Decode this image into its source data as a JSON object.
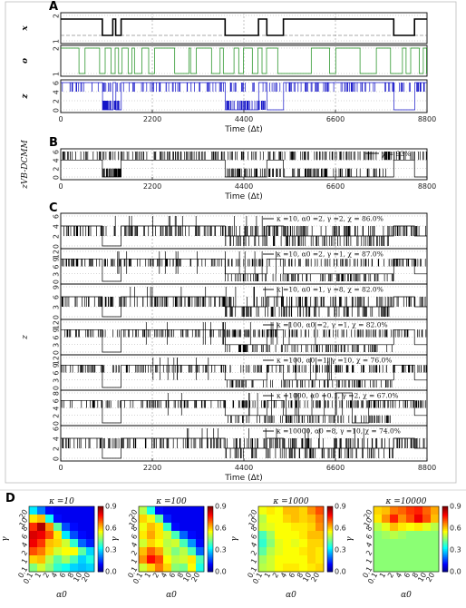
{
  "chart_data": [
    {
      "panel": "A",
      "type": "line",
      "subplots": [
        {
          "ylabel": "x",
          "ytick_labels": [
            "2",
            "1"
          ],
          "color": "#000000"
        },
        {
          "ylabel": "o",
          "ytick_labels": [
            "2",
            "1"
          ],
          "color": "#138a13"
        },
        {
          "ylabel": "z",
          "ytick_labels": [
            "6",
            "4",
            "2",
            "0"
          ],
          "color": "#1414c8"
        }
      ],
      "xlabel": "Time (Δt)",
      "xticks": [
        "0",
        "2200",
        "4400",
        "6600",
        "8800"
      ],
      "xlim": [
        0,
        8800
      ]
    },
    {
      "panel": "B",
      "type": "line",
      "ylabel": "z^{VB-DCMM}",
      "ytick_labels": [
        "6",
        "4",
        "2",
        "0"
      ],
      "legend": "χ = 93%",
      "xlabel": "Time (Δt)",
      "xticks": [
        "0",
        "2200",
        "4400",
        "6600",
        "8800"
      ],
      "xlim": [
        0,
        8800
      ]
    },
    {
      "panel": "C",
      "type": "line",
      "ylabel": "z^{iAMM}",
      "xlabel": "Time (Δt)",
      "xticks": [
        "0",
        "2200",
        "4400",
        "6600",
        "8800"
      ],
      "xlim": [
        0,
        8800
      ],
      "series": [
        {
          "name": "κ =10, α0 =2, γ =2, χ = 86.0%",
          "ytick_labels": [
            "6",
            "4",
            "2",
            "0"
          ]
        },
        {
          "name": "κ =10, α0 =2, γ =1, χ = 87.0%",
          "ytick_labels": [
            "12",
            "9",
            "6",
            "3",
            "0"
          ]
        },
        {
          "name": "κ =10, α0 =1, γ =8, χ = 82.0%",
          "ytick_labels": [
            "9",
            "6",
            "3",
            "0"
          ]
        },
        {
          "name": "κ =100, α0 =2, γ =1, χ = 82.0%",
          "ytick_labels": [
            "12",
            "9",
            "6",
            "3",
            "0"
          ]
        },
        {
          "name": "κ =100, α0 =1, γ =10, χ = 76.0%",
          "ytick_labels": [
            "12",
            "9",
            "6",
            "3",
            "0"
          ]
        },
        {
          "name": "κ =1000, α0 =0.1, γ =2, χ = 67.0%",
          "ytick_labels": [
            "8",
            "6",
            "4",
            "2",
            "0"
          ]
        },
        {
          "name": "κ =10000, α0 =8, γ =10, χ = 74.0%",
          "ytick_labels": [
            "6",
            "4",
            "2",
            "0"
          ]
        }
      ]
    },
    {
      "panel": "D",
      "type": "heatmap",
      "xlabel": "α0",
      "ylabel": "γ",
      "x_tick_labels": [
        "0.1",
        "1",
        "2",
        "4",
        "6",
        "8",
        "10",
        "20"
      ],
      "y_tick_labels": [
        "0.1",
        "1",
        "2",
        "4",
        "6",
        "8",
        "10",
        "20"
      ],
      "colorbar_ticks": [
        "0.9",
        "0.6",
        "0.3",
        "0.0"
      ],
      "colorbar_range": [
        0,
        0.9
      ],
      "colormap": "jet",
      "maps": [
        {
          "title": "κ =10",
          "values": [
            [
              0.32,
              0.22,
              0.12,
              0.1,
              0.1,
              0.1,
              0.1,
              0.1
            ],
            [
              0.58,
              0.62,
              0.35,
              0.12,
              0.1,
              0.1,
              0.1,
              0.1
            ],
            [
              0.75,
              0.86,
              0.66,
              0.42,
              0.18,
              0.12,
              0.1,
              0.1
            ],
            [
              0.82,
              0.8,
              0.72,
              0.58,
              0.32,
              0.18,
              0.12,
              0.1
            ],
            [
              0.8,
              0.74,
              0.62,
              0.6,
              0.52,
              0.38,
              0.2,
              0.14
            ],
            [
              0.72,
              0.68,
              0.6,
              0.52,
              0.56,
              0.56,
              0.42,
              0.3
            ],
            [
              0.6,
              0.62,
              0.5,
              0.42,
              0.48,
              0.4,
              0.3,
              0.36
            ],
            [
              0.45,
              0.52,
              0.46,
              0.38,
              0.35,
              0.3,
              0.28,
              0.3
            ]
          ]
        },
        {
          "title": "κ =100",
          "values": [
            [
              0.5,
              0.36,
              0.12,
              0.1,
              0.1,
              0.1,
              0.1,
              0.1
            ],
            [
              0.6,
              0.55,
              0.42,
              0.14,
              0.1,
              0.1,
              0.1,
              0.1
            ],
            [
              0.55,
              0.62,
              0.58,
              0.38,
              0.12,
              0.1,
              0.1,
              0.1
            ],
            [
              0.58,
              0.64,
              0.58,
              0.52,
              0.4,
              0.2,
              0.12,
              0.1
            ],
            [
              0.52,
              0.6,
              0.56,
              0.5,
              0.52,
              0.4,
              0.24,
              0.12
            ],
            [
              0.62,
              0.7,
              0.64,
              0.52,
              0.45,
              0.5,
              0.4,
              0.2
            ],
            [
              0.66,
              0.78,
              0.72,
              0.56,
              0.5,
              0.52,
              0.58,
              0.4
            ],
            [
              0.52,
              0.6,
              0.68,
              0.6,
              0.46,
              0.44,
              0.56,
              0.36
            ]
          ]
        },
        {
          "title": "κ =1000",
          "values": [
            [
              0.55,
              0.58,
              0.56,
              0.62,
              0.62,
              0.6,
              0.66,
              0.72
            ],
            [
              0.5,
              0.56,
              0.56,
              0.6,
              0.62,
              0.6,
              0.62,
              0.68
            ],
            [
              0.52,
              0.54,
              0.56,
              0.56,
              0.58,
              0.58,
              0.6,
              0.66
            ],
            [
              0.4,
              0.48,
              0.56,
              0.56,
              0.56,
              0.58,
              0.62,
              0.62
            ],
            [
              0.38,
              0.46,
              0.54,
              0.56,
              0.54,
              0.56,
              0.6,
              0.6
            ],
            [
              0.42,
              0.5,
              0.54,
              0.56,
              0.56,
              0.58,
              0.6,
              0.58
            ],
            [
              0.48,
              0.52,
              0.56,
              0.56,
              0.56,
              0.56,
              0.6,
              0.58
            ],
            [
              0.5,
              0.52,
              0.56,
              0.58,
              0.58,
              0.56,
              0.58,
              0.6
            ]
          ]
        },
        {
          "title": "κ =10000",
          "values": [
            [
              0.6,
              0.62,
              0.68,
              0.7,
              0.74,
              0.76,
              0.7,
              0.64
            ],
            [
              0.58,
              0.66,
              0.76,
              0.66,
              0.72,
              0.8,
              0.72,
              0.62
            ],
            [
              0.5,
              0.54,
              0.62,
              0.58,
              0.56,
              0.58,
              0.54,
              0.5
            ],
            [
              0.46,
              0.48,
              0.5,
              0.48,
              0.46,
              0.46,
              0.46,
              0.46
            ],
            [
              0.46,
              0.46,
              0.46,
              0.46,
              0.46,
              0.46,
              0.46,
              0.46
            ],
            [
              0.46,
              0.46,
              0.46,
              0.46,
              0.46,
              0.46,
              0.46,
              0.46
            ],
            [
              0.46,
              0.46,
              0.46,
              0.46,
              0.46,
              0.46,
              0.46,
              0.46
            ],
            [
              0.46,
              0.46,
              0.46,
              0.46,
              0.46,
              0.46,
              0.46,
              0.46
            ]
          ]
        }
      ]
    }
  ]
}
